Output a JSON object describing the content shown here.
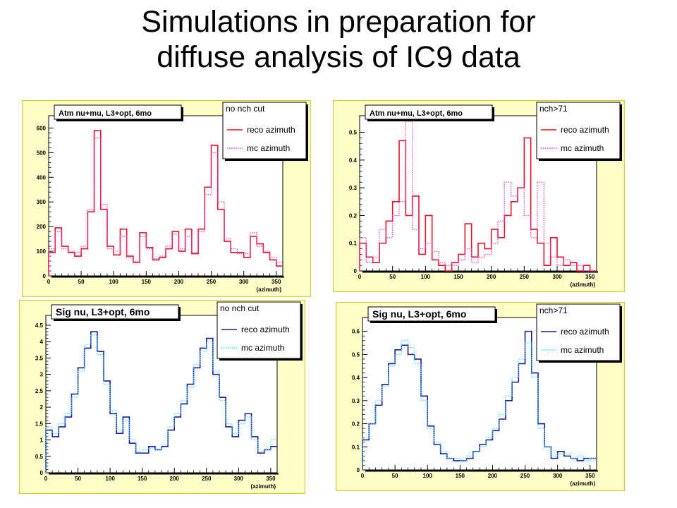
{
  "slide": {
    "title_line1": "Simulations in preparation for",
    "title_line2": "diffuse analysis of IC9 data"
  },
  "colors": {
    "panel_fill": "#ffffc8",
    "panel_border": "#d8cc40",
    "reco_atm": "#e8102a",
    "mc_atm": "#e040e0",
    "reco_sig": "#1a1aa0",
    "mc_sig": "#40e8f0"
  },
  "chart_data": [
    {
      "type": "histogram",
      "title": "Atm nu+mu, L3+opt, 6mo",
      "legend_header": "no nch cut",
      "legend_position": "top-right",
      "xlabel": "(azimuth)",
      "xlim": [
        0,
        360
      ],
      "ylim": [
        0,
        650
      ],
      "xticks": [
        "0",
        "50",
        "100",
        "150",
        "200",
        "250",
        "300",
        "350"
      ],
      "yticks": [
        "0",
        "100",
        "200",
        "300",
        "400",
        "500",
        "600"
      ],
      "x": [
        0,
        10,
        20,
        30,
        40,
        50,
        60,
        70,
        80,
        90,
        100,
        110,
        120,
        130,
        140,
        150,
        160,
        170,
        180,
        190,
        200,
        210,
        220,
        230,
        240,
        250,
        260,
        270,
        280,
        290,
        300,
        310,
        320,
        330,
        340,
        350
      ],
      "series": [
        {
          "name": "reco azimuth",
          "color_key": "reco_atm",
          "style": "solid",
          "values": [
            95,
            195,
            120,
            95,
            80,
            110,
            260,
            590,
            270,
            120,
            85,
            190,
            80,
            55,
            175,
            115,
            65,
            75,
            110,
            180,
            100,
            190,
            90,
            190,
            360,
            530,
            270,
            140,
            95,
            95,
            75,
            160,
            130,
            95,
            65,
            40
          ]
        },
        {
          "name": "mc azimuth",
          "color_key": "mc_atm",
          "style": "dotted",
          "values": [
            110,
            180,
            110,
            100,
            95,
            120,
            270,
            560,
            290,
            110,
            100,
            160,
            75,
            60,
            160,
            110,
            70,
            80,
            120,
            170,
            110,
            160,
            95,
            180,
            330,
            500,
            300,
            150,
            110,
            90,
            90,
            175,
            120,
            100,
            75,
            55
          ]
        }
      ]
    },
    {
      "type": "histogram",
      "title": "Atm nu+mu, L3+opt, 6mo",
      "legend_header": "nch>71",
      "legend_position": "top-right",
      "xlabel": "(azimuth)",
      "xlim": [
        0,
        360
      ],
      "ylim": [
        0,
        0.56
      ],
      "xticks": [
        "0",
        "50",
        "100",
        "150",
        "200",
        "250",
        "300",
        "350"
      ],
      "yticks": [
        "0",
        "0.1",
        "0.2",
        "0.3",
        "0.4",
        "0.5"
      ],
      "x": [
        0,
        10,
        20,
        30,
        40,
        50,
        60,
        70,
        80,
        90,
        100,
        110,
        120,
        130,
        140,
        150,
        160,
        170,
        180,
        190,
        200,
        210,
        220,
        230,
        240,
        250,
        260,
        270,
        280,
        290,
        300,
        310,
        320,
        330,
        340,
        350
      ],
      "series": [
        {
          "name": "reco azimuth",
          "color_key": "reco_atm",
          "style": "solid",
          "values": [
            0.1,
            0.05,
            0.03,
            0.1,
            0.18,
            0.25,
            0.47,
            0.2,
            0.27,
            0.06,
            0.2,
            0.04,
            0.02,
            0.0,
            0.03,
            0.06,
            0.17,
            0.05,
            0.1,
            0.08,
            0.15,
            0.12,
            0.2,
            0.25,
            0.3,
            0.48,
            0.15,
            0.1,
            0.02,
            0.12,
            0.05,
            0.02,
            0.03,
            0.0,
            0.02,
            0.0
          ]
        },
        {
          "name": "mc azimuth",
          "color_key": "mc_atm",
          "style": "dotted",
          "values": [
            0.12,
            0.03,
            0.05,
            0.15,
            0.12,
            0.2,
            0.25,
            0.54,
            0.15,
            0.08,
            0.1,
            0.07,
            0.03,
            0.02,
            0.02,
            0.04,
            0.08,
            0.03,
            0.05,
            0.06,
            0.1,
            0.18,
            0.32,
            0.27,
            0.3,
            0.2,
            0.12,
            0.32,
            0.1,
            0.05,
            0.02,
            0.04,
            0.02,
            0.02,
            0.0,
            0.0
          ]
        }
      ]
    },
    {
      "type": "histogram",
      "title": "Sig nu, L3+opt, 6mo",
      "legend_header": "no nch cut",
      "legend_position": "top-right",
      "xlabel": "(azimuth)",
      "xlim": [
        0,
        360
      ],
      "ylim": [
        0,
        4.8
      ],
      "xticks": [
        "0",
        "50",
        "100",
        "150",
        "200",
        "250",
        "300",
        "350"
      ],
      "yticks": [
        "0",
        "0.5",
        "1",
        "1.5",
        "2",
        "2.5",
        "3",
        "3.5",
        "4",
        "4.5"
      ],
      "x": [
        0,
        10,
        20,
        30,
        40,
        50,
        60,
        70,
        80,
        90,
        100,
        110,
        120,
        130,
        140,
        150,
        160,
        170,
        180,
        190,
        200,
        210,
        220,
        230,
        240,
        250,
        260,
        270,
        280,
        290,
        300,
        310,
        320,
        330,
        340,
        350
      ],
      "series": [
        {
          "name": "reco azimuth",
          "color_key": "reco_sig",
          "style": "solid",
          "values": [
            1.3,
            1.1,
            1.4,
            1.7,
            2.4,
            3.2,
            3.8,
            4.3,
            3.7,
            2.8,
            1.8,
            1.2,
            1.7,
            0.9,
            0.6,
            0.6,
            0.8,
            0.7,
            0.8,
            1.3,
            1.7,
            2.1,
            2.7,
            3.2,
            3.8,
            4.1,
            3.0,
            2.3,
            1.4,
            1.1,
            1.6,
            1.8,
            1.1,
            0.6,
            0.7,
            0.8
          ]
        },
        {
          "name": "mc azimuth",
          "color_key": "mc_sig",
          "style": "dotted",
          "values": [
            1.4,
            1.2,
            1.5,
            1.8,
            2.3,
            3.1,
            3.9,
            4.2,
            3.6,
            2.7,
            1.9,
            1.3,
            1.6,
            1.0,
            0.65,
            0.7,
            0.75,
            0.7,
            0.85,
            1.4,
            1.8,
            2.2,
            2.6,
            3.3,
            3.7,
            4.0,
            3.1,
            2.2,
            1.5,
            1.2,
            1.5,
            1.7,
            1.0,
            0.65,
            0.7,
            1.0
          ]
        }
      ]
    },
    {
      "type": "histogram",
      "title": "Sig nu, L3+opt, 6mo",
      "legend_header": "nch>71",
      "legend_position": "top-right",
      "xlabel": "(azimuth)",
      "xlim": [
        0,
        360
      ],
      "ylim": [
        0,
        0.66
      ],
      "xticks": [
        "0",
        "50",
        "100",
        "150",
        "200",
        "250",
        "300",
        "350"
      ],
      "yticks": [
        "0",
        "0.1",
        "0.2",
        "0.3",
        "0.4",
        "0.5",
        "0.6"
      ],
      "x": [
        0,
        10,
        20,
        30,
        40,
        50,
        60,
        70,
        80,
        90,
        100,
        110,
        120,
        130,
        140,
        150,
        160,
        170,
        180,
        190,
        200,
        210,
        220,
        230,
        240,
        250,
        260,
        270,
        280,
        290,
        300,
        310,
        320,
        330,
        340,
        350
      ],
      "series": [
        {
          "name": "reco azimuth",
          "color_key": "reco_sig",
          "style": "solid",
          "values": [
            0.13,
            0.2,
            0.28,
            0.37,
            0.46,
            0.52,
            0.54,
            0.5,
            0.48,
            0.32,
            0.19,
            0.11,
            0.07,
            0.05,
            0.04,
            0.04,
            0.05,
            0.08,
            0.11,
            0.13,
            0.17,
            0.22,
            0.3,
            0.38,
            0.46,
            0.6,
            0.42,
            0.2,
            0.1,
            0.05,
            0.08,
            0.06,
            0.05,
            0.04,
            0.05,
            0.05
          ]
        },
        {
          "name": "mc azimuth",
          "color_key": "mc_sig",
          "style": "dotted",
          "values": [
            0.14,
            0.2,
            0.3,
            0.36,
            0.45,
            0.5,
            0.56,
            0.53,
            0.46,
            0.3,
            0.18,
            0.12,
            0.08,
            0.05,
            0.05,
            0.04,
            0.06,
            0.08,
            0.1,
            0.14,
            0.18,
            0.24,
            0.32,
            0.4,
            0.48,
            0.55,
            0.4,
            0.18,
            0.1,
            0.06,
            0.07,
            0.07,
            0.05,
            0.06,
            0.04,
            0.05
          ]
        }
      ]
    }
  ]
}
